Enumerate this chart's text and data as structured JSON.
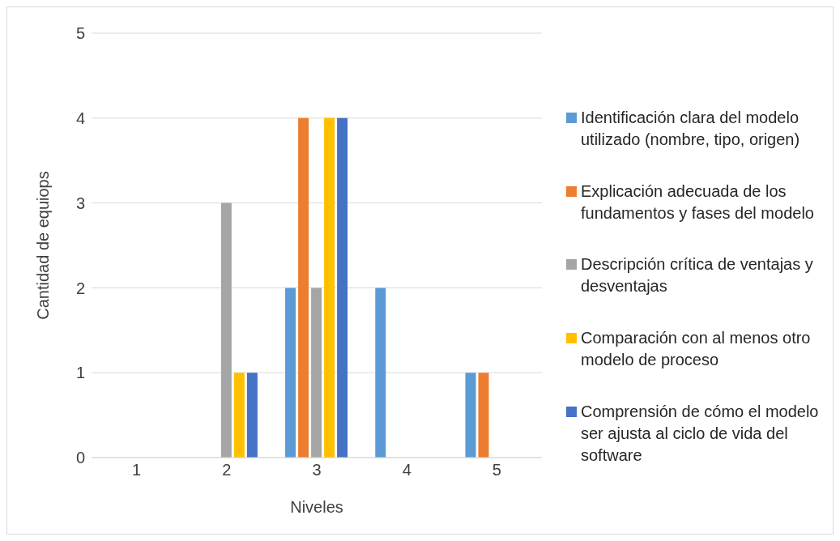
{
  "chart_data": {
    "type": "bar",
    "xlabel": "Niveles",
    "ylabel": "Cantidad de equiops",
    "categories": [
      "1",
      "2",
      "3",
      "4",
      "5"
    ],
    "series": [
      {
        "name": "Identificación clara del modelo utilizado (nombre, tipo, origen)",
        "color": "#5b9bd5",
        "values": [
          0,
          0,
          2,
          2,
          1
        ]
      },
      {
        "name": "Explicación adecuada de los fundamentos y fases del modelo",
        "color": "#ed7d31",
        "values": [
          0,
          0,
          4,
          0,
          1
        ]
      },
      {
        "name": "Descripción crítica de ventajas y desventajas",
        "color": "#a5a5a5",
        "values": [
          0,
          3,
          2,
          0,
          0
        ]
      },
      {
        "name": "Comparación con al menos otro modelo de proceso",
        "color": "#ffc000",
        "values": [
          0,
          1,
          4,
          0,
          0
        ]
      },
      {
        "name": "Comprensión de cómo el modelo ser ajusta al ciclo de vida del software",
        "color": "#4472c4",
        "values": [
          0,
          1,
          4,
          0,
          0
        ]
      }
    ],
    "ylim": [
      0,
      5
    ],
    "yticks": [
      0,
      1,
      2,
      3,
      4,
      5
    ],
    "grid": "y",
    "legend": "right"
  }
}
